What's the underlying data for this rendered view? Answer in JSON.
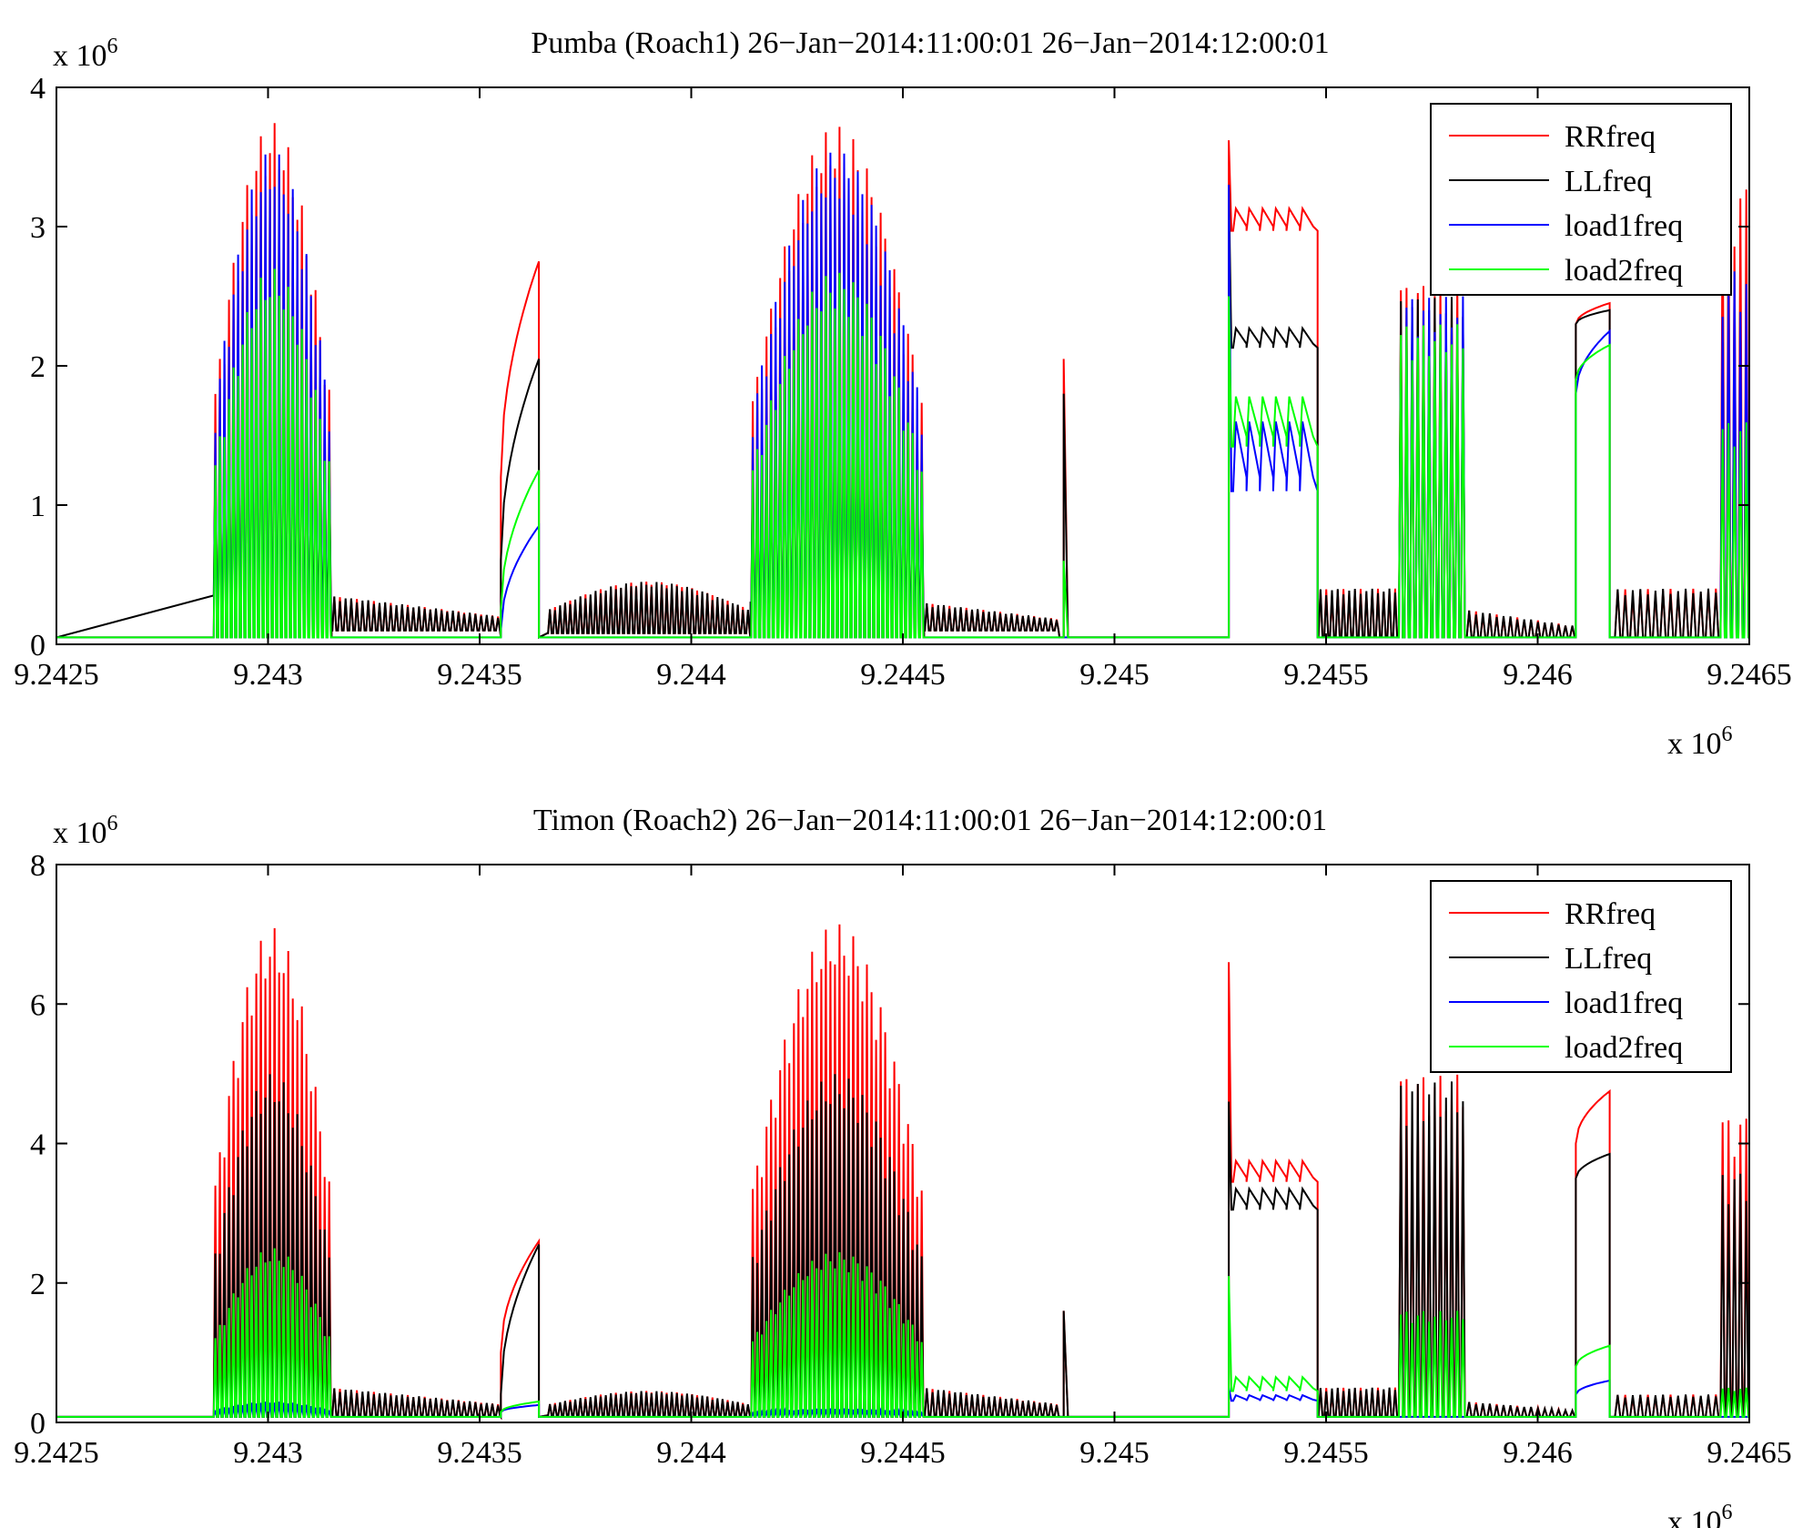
{
  "chart_data": [
    {
      "type": "line",
      "title": "Pumba (Roach1) 26−Jan−2014:11:00:01 26−Jan−2014:12:00:01",
      "xlabel": "",
      "ylabel": "",
      "x_multiplier_label": "x 10",
      "y_multiplier_label": "x 10",
      "multiplier_exponent": "6",
      "xlim": [
        9.2425,
        9.2465
      ],
      "ylim": [
        0,
        4
      ],
      "xticks": [
        "9.2425",
        "9.243",
        "9.2435",
        "9.244",
        "9.2445",
        "9.245",
        "9.2455",
        "9.246",
        "9.2465"
      ],
      "yticks": [
        "0",
        "1",
        "2",
        "3",
        "4"
      ],
      "legend_position": "top-right",
      "grid": false,
      "series": [
        {
          "name": "RRfreq",
          "color": "#ff0000",
          "baseline": 0.05,
          "segments": [
            {
              "x0": 9.24287,
              "x1": 9.24315,
              "shape": "osc",
              "n": 26,
              "lo": 0.05,
              "hi": 3.75,
              "bell": true
            },
            {
              "x0": 9.24315,
              "x1": 9.24355,
              "shape": "osc",
              "n": 30,
              "lo": 0.1,
              "hi": 0.35,
              "decay": true
            },
            {
              "x0": 9.24355,
              "x1": 9.24364,
              "shape": "ramp",
              "from": 1.2,
              "to": 2.75
            },
            {
              "x0": 9.24366,
              "x1": 9.24414,
              "shape": "osc",
              "n": 40,
              "lo": 0.08,
              "hi": 0.45,
              "bell": true
            },
            {
              "x0": 9.24414,
              "x1": 9.24455,
              "shape": "osc",
              "n": 38,
              "lo": 0.05,
              "hi": 3.72,
              "bell": true
            },
            {
              "x0": 9.24455,
              "x1": 9.24487,
              "shape": "osc",
              "n": 24,
              "lo": 0.1,
              "hi": 0.3,
              "decay": true
            },
            {
              "x0": 9.24488,
              "x1": 9.24489,
              "shape": "spike",
              "hi": 2.05
            },
            {
              "x0": 9.24527,
              "x1": 9.24548,
              "shape": "plateau",
              "level": 3.05,
              "ripple": 0.08,
              "spike": 3.62
            },
            {
              "x0": 9.24548,
              "x1": 9.24567,
              "shape": "osc",
              "n": 14,
              "lo": 0.05,
              "hi": 0.4
            },
            {
              "x0": 9.24567,
              "x1": 9.24583,
              "shape": "osc",
              "n": 12,
              "lo": 0.05,
              "hi": 2.6
            },
            {
              "x0": 9.24583,
              "x1": 9.24609,
              "shape": "osc",
              "n": 16,
              "lo": 0.05,
              "hi": 0.25,
              "decay": true
            },
            {
              "x0": 9.24609,
              "x1": 9.24617,
              "shape": "ramp",
              "from": 2.3,
              "to": 2.45
            },
            {
              "x0": 9.24618,
              "x1": 9.24643,
              "shape": "osc",
              "n": 14,
              "lo": 0.05,
              "hi": 0.4
            },
            {
              "x0": 9.24643,
              "x1": 9.2465,
              "shape": "osc",
              "n": 5,
              "lo": 0.05,
              "hi": 3.3
            }
          ]
        },
        {
          "name": "LLfreq",
          "color": "#000000",
          "baseline": 0.05,
          "segments": [
            {
              "x0": 9.24287,
              "x1": 9.24315,
              "shape": "osc",
              "n": 26,
              "lo": 0.35,
              "hi": 2.4,
              "bell": true
            },
            {
              "x0": 9.24315,
              "x1": 9.24355,
              "shape": "osc",
              "n": 30,
              "lo": 0.1,
              "hi": 0.35,
              "decay": true
            },
            {
              "x0": 9.24355,
              "x1": 9.24364,
              "shape": "ramp",
              "from": 0.6,
              "to": 2.05
            },
            {
              "x0": 9.24366,
              "x1": 9.24414,
              "shape": "osc",
              "n": 40,
              "lo": 0.08,
              "hi": 0.45,
              "bell": true
            },
            {
              "x0": 9.24414,
              "x1": 9.24455,
              "shape": "osc",
              "n": 38,
              "lo": 0.3,
              "hi": 2.3,
              "bell": true
            },
            {
              "x0": 9.24455,
              "x1": 9.24487,
              "shape": "osc",
              "n": 24,
              "lo": 0.1,
              "hi": 0.3,
              "decay": true
            },
            {
              "x0": 9.24488,
              "x1": 9.24489,
              "shape": "spike",
              "hi": 1.8
            },
            {
              "x0": 9.24527,
              "x1": 9.24548,
              "shape": "plateau",
              "level": 2.2,
              "ripple": 0.07,
              "spike": 3.3
            },
            {
              "x0": 9.24548,
              "x1": 9.24567,
              "shape": "osc",
              "n": 14,
              "lo": 0.05,
              "hi": 0.4
            },
            {
              "x0": 9.24567,
              "x1": 9.24583,
              "shape": "osc",
              "n": 12,
              "lo": 0.05,
              "hi": 2.5
            },
            {
              "x0": 9.24583,
              "x1": 9.24609,
              "shape": "osc",
              "n": 16,
              "lo": 0.05,
              "hi": 0.25,
              "decay": true
            },
            {
              "x0": 9.24609,
              "x1": 9.24617,
              "shape": "ramp",
              "from": 2.3,
              "to": 2.4
            },
            {
              "x0": 9.24618,
              "x1": 9.24643,
              "shape": "osc",
              "n": 14,
              "lo": 0.05,
              "hi": 0.4
            },
            {
              "x0": 9.24643,
              "x1": 9.2465,
              "shape": "osc",
              "n": 5,
              "lo": 0.05,
              "hi": 2.2
            }
          ]
        },
        {
          "name": "load1freq",
          "color": "#0000ff",
          "baseline": 0.05,
          "segments": [
            {
              "x0": 9.24287,
              "x1": 9.24315,
              "shape": "osc",
              "n": 26,
              "lo": 0.05,
              "hi": 3.55,
              "bell": true
            },
            {
              "x0": 9.24355,
              "x1": 9.24364,
              "shape": "ramp",
              "from": 0.1,
              "to": 0.85
            },
            {
              "x0": 9.24414,
              "x1": 9.24455,
              "shape": "osc",
              "n": 38,
              "lo": 0.05,
              "hi": 3.55,
              "bell": true
            },
            {
              "x0": 9.24527,
              "x1": 9.24548,
              "shape": "plateau",
              "level": 1.35,
              "ripple": 0.25,
              "spike": 3.3
            },
            {
              "x0": 9.24567,
              "x1": 9.24583,
              "shape": "osc",
              "n": 12,
              "lo": 0.05,
              "hi": 2.5
            },
            {
              "x0": 9.24609,
              "x1": 9.24617,
              "shape": "ramp",
              "from": 1.8,
              "to": 2.25
            },
            {
              "x0": 9.24643,
              "x1": 9.2465,
              "shape": "osc",
              "n": 5,
              "lo": 0.05,
              "hi": 2.7
            }
          ]
        },
        {
          "name": "load2freq",
          "color": "#00ff00",
          "baseline": 0.05,
          "segments": [
            {
              "x0": 9.24287,
              "x1": 9.24315,
              "shape": "osc",
              "n": 26,
              "lo": 0.05,
              "hi": 2.7,
              "bell": true
            },
            {
              "x0": 9.24355,
              "x1": 9.24364,
              "shape": "ramp",
              "from": 0.25,
              "to": 1.25
            },
            {
              "x0": 9.24414,
              "x1": 9.24455,
              "shape": "osc",
              "n": 38,
              "lo": 0.05,
              "hi": 2.68,
              "bell": true
            },
            {
              "x0": 9.24488,
              "x1": 9.24489,
              "shape": "spike",
              "hi": 0.6
            },
            {
              "x0": 9.24527,
              "x1": 9.24548,
              "shape": "plateau",
              "level": 1.6,
              "ripple": 0.18,
              "spike": 2.5
            },
            {
              "x0": 9.24567,
              "x1": 9.24583,
              "shape": "osc",
              "n": 12,
              "lo": 0.05,
              "hi": 2.3
            },
            {
              "x0": 9.24609,
              "x1": 9.24617,
              "shape": "ramp",
              "from": 1.9,
              "to": 2.15
            },
            {
              "x0": 9.24643,
              "x1": 9.2465,
              "shape": "osc",
              "n": 5,
              "lo": 0.05,
              "hi": 1.6
            }
          ]
        }
      ]
    },
    {
      "type": "line",
      "title": "Timon (Roach2) 26−Jan−2014:11:00:01 26−Jan−2014:12:00:01",
      "xlabel": "",
      "ylabel": "",
      "x_multiplier_label": "x 10",
      "y_multiplier_label": "x 10",
      "multiplier_exponent": "6",
      "xlim": [
        9.2425,
        9.2465
      ],
      "ylim": [
        0,
        8
      ],
      "xticks": [
        "9.2425",
        "9.243",
        "9.2435",
        "9.244",
        "9.2445",
        "9.245",
        "9.2455",
        "9.246",
        "9.2465"
      ],
      "yticks": [
        "0",
        "2",
        "4",
        "6",
        "8"
      ],
      "legend_position": "top-right",
      "grid": false,
      "series": [
        {
          "name": "RRfreq",
          "color": "#ff0000",
          "baseline": 0.08,
          "segments": [
            {
              "x0": 9.24287,
              "x1": 9.24315,
              "shape": "osc",
              "n": 26,
              "lo": 0.08,
              "hi": 7.1,
              "bell": true
            },
            {
              "x0": 9.24315,
              "x1": 9.24355,
              "shape": "osc",
              "n": 30,
              "lo": 0.1,
              "hi": 0.5,
              "decay": true
            },
            {
              "x0": 9.24355,
              "x1": 9.24364,
              "shape": "ramp",
              "from": 1.0,
              "to": 2.6
            },
            {
              "x0": 9.24366,
              "x1": 9.24414,
              "shape": "osc",
              "n": 40,
              "lo": 0.1,
              "hi": 0.45,
              "bell": true
            },
            {
              "x0": 9.24414,
              "x1": 9.24455,
              "shape": "osc",
              "n": 38,
              "lo": 0.08,
              "hi": 7.15,
              "bell": true
            },
            {
              "x0": 9.24455,
              "x1": 9.24487,
              "shape": "osc",
              "n": 24,
              "lo": 0.1,
              "hi": 0.5,
              "decay": true
            },
            {
              "x0": 9.24488,
              "x1": 9.24489,
              "shape": "spike",
              "hi": 1.6
            },
            {
              "x0": 9.24527,
              "x1": 9.24548,
              "shape": "plateau",
              "level": 3.6,
              "ripple": 0.15,
              "spike": 6.6
            },
            {
              "x0": 9.24548,
              "x1": 9.24567,
              "shape": "osc",
              "n": 14,
              "lo": 0.08,
              "hi": 0.5
            },
            {
              "x0": 9.24567,
              "x1": 9.24583,
              "shape": "osc",
              "n": 12,
              "lo": 0.08,
              "hi": 5.0
            },
            {
              "x0": 9.24583,
              "x1": 9.24609,
              "shape": "osc",
              "n": 16,
              "lo": 0.08,
              "hi": 0.3,
              "decay": true
            },
            {
              "x0": 9.24609,
              "x1": 9.24617,
              "shape": "ramp",
              "from": 4.0,
              "to": 4.75
            },
            {
              "x0": 9.24618,
              "x1": 9.24643,
              "shape": "osc",
              "n": 14,
              "lo": 0.08,
              "hi": 0.4
            },
            {
              "x0": 9.24643,
              "x1": 9.2465,
              "shape": "osc",
              "n": 5,
              "lo": 0.08,
              "hi": 4.4
            }
          ]
        },
        {
          "name": "LLfreq",
          "color": "#000000",
          "baseline": 0.08,
          "segments": [
            {
              "x0": 9.24287,
              "x1": 9.24315,
              "shape": "osc",
              "n": 26,
              "lo": 0.08,
              "hi": 5.0,
              "bell": true
            },
            {
              "x0": 9.24315,
              "x1": 9.24355,
              "shape": "osc",
              "n": 30,
              "lo": 0.1,
              "hi": 0.5,
              "decay": true
            },
            {
              "x0": 9.24355,
              "x1": 9.24364,
              "shape": "ramp",
              "from": 0.4,
              "to": 2.55
            },
            {
              "x0": 9.24366,
              "x1": 9.24414,
              "shape": "osc",
              "n": 40,
              "lo": 0.1,
              "hi": 0.45,
              "bell": true
            },
            {
              "x0": 9.24414,
              "x1": 9.24455,
              "shape": "osc",
              "n": 38,
              "lo": 0.08,
              "hi": 5.0,
              "bell": true
            },
            {
              "x0": 9.24455,
              "x1": 9.24487,
              "shape": "osc",
              "n": 24,
              "lo": 0.1,
              "hi": 0.5,
              "decay": true
            },
            {
              "x0": 9.24488,
              "x1": 9.24489,
              "shape": "spike",
              "hi": 1.6
            },
            {
              "x0": 9.24527,
              "x1": 9.24548,
              "shape": "plateau",
              "level": 3.2,
              "ripple": 0.15,
              "spike": 4.6
            },
            {
              "x0": 9.24548,
              "x1": 9.24567,
              "shape": "osc",
              "n": 14,
              "lo": 0.08,
              "hi": 0.5
            },
            {
              "x0": 9.24567,
              "x1": 9.24583,
              "shape": "osc",
              "n": 12,
              "lo": 0.08,
              "hi": 4.9
            },
            {
              "x0": 9.24583,
              "x1": 9.24609,
              "shape": "osc",
              "n": 16,
              "lo": 0.08,
              "hi": 0.3,
              "decay": true
            },
            {
              "x0": 9.24609,
              "x1": 9.24617,
              "shape": "ramp",
              "from": 3.5,
              "to": 3.85
            },
            {
              "x0": 9.24618,
              "x1": 9.24643,
              "shape": "osc",
              "n": 14,
              "lo": 0.08,
              "hi": 0.4
            },
            {
              "x0": 9.24643,
              "x1": 9.2465,
              "shape": "osc",
              "n": 5,
              "lo": 0.08,
              "hi": 3.6
            }
          ]
        },
        {
          "name": "load1freq",
          "color": "#0000ff",
          "baseline": 0.08,
          "segments": [
            {
              "x0": 9.24287,
              "x1": 9.24315,
              "shape": "osc",
              "n": 26,
              "lo": 0.08,
              "hi": 0.3,
              "bell": true
            },
            {
              "x0": 9.24355,
              "x1": 9.24364,
              "shape": "ramp",
              "from": 0.15,
              "to": 0.25
            },
            {
              "x0": 9.24414,
              "x1": 9.24455,
              "shape": "osc",
              "n": 38,
              "lo": 0.08,
              "hi": 0.2,
              "bell": true
            },
            {
              "x0": 9.24527,
              "x1": 9.24548,
              "shape": "plateau",
              "level": 0.35,
              "ripple": 0.04,
              "spike": 0.5
            },
            {
              "x0": 9.24609,
              "x1": 9.24617,
              "shape": "ramp",
              "from": 0.4,
              "to": 0.6
            }
          ]
        },
        {
          "name": "load2freq",
          "color": "#00ff00",
          "baseline": 0.08,
          "segments": [
            {
              "x0": 9.24287,
              "x1": 9.24315,
              "shape": "osc",
              "n": 26,
              "lo": 0.08,
              "hi": 2.5,
              "bell": true
            },
            {
              "x0": 9.24355,
              "x1": 9.24364,
              "shape": "ramp",
              "from": 0.15,
              "to": 0.3
            },
            {
              "x0": 9.24414,
              "x1": 9.24455,
              "shape": "osc",
              "n": 38,
              "lo": 0.08,
              "hi": 2.45,
              "bell": true
            },
            {
              "x0": 9.24527,
              "x1": 9.24548,
              "shape": "plateau",
              "level": 0.55,
              "ripple": 0.1,
              "spike": 2.1
            },
            {
              "x0": 9.24567,
              "x1": 9.24583,
              "shape": "osc",
              "n": 12,
              "lo": 0.08,
              "hi": 1.6
            },
            {
              "x0": 9.24609,
              "x1": 9.24617,
              "shape": "ramp",
              "from": 0.8,
              "to": 1.1
            },
            {
              "x0": 9.24643,
              "x1": 9.2465,
              "shape": "osc",
              "n": 5,
              "lo": 0.08,
              "hi": 0.5
            }
          ]
        }
      ]
    }
  ]
}
